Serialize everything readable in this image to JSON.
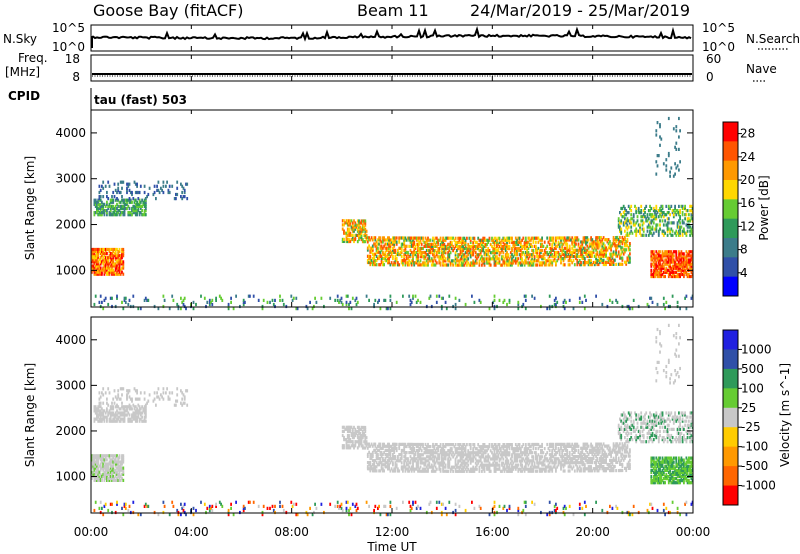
{
  "header": {
    "station": "Goose Bay (fitACF)",
    "beam": "Beam 11",
    "dates": "24/Mar/2019 - 25/Mar/2019"
  },
  "top_panels": {
    "nsky": {
      "label": "N.Sky",
      "ticks_left": [
        "10^5",
        "10^0"
      ],
      "ticks_right": [
        "10^5",
        "10^0"
      ],
      "right_label": "N.Search"
    },
    "freq": {
      "label_line1": "Freq.",
      "label_line2": "[MHz]",
      "ticks_left": [
        "18",
        "8"
      ],
      "ticks_right": [
        "60",
        "0"
      ],
      "right_label": "Nave"
    },
    "cpid": {
      "label": "CPID",
      "value": "tau (fast) 503"
    }
  },
  "colors": {
    "power_scale": [
      "#0000ff",
      "#3050a8",
      "#3c7c8a",
      "#2f9a5a",
      "#66cc33",
      "#ffd700",
      "#ff9900",
      "#ff5500",
      "#ff0000"
    ],
    "velocity_scale": [
      "#ff0000",
      "#ff6600",
      "#ff9900",
      "#ffcc00",
      "#c8c8c8",
      "#66cc33",
      "#2f9a5a",
      "#3050a8",
      "#2020e0"
    ]
  },
  "chart_data": [
    {
      "type": "heatmap",
      "name": "power",
      "ylabel": "Slant Range [km]",
      "y_ticks": [
        1000,
        2000,
        3000,
        4000
      ],
      "ylim": [
        200,
        4500
      ],
      "colorbar_label": "Power [dB]",
      "colorbar_ticks": [
        "4",
        "8",
        "12",
        "16",
        "20",
        "24",
        "28"
      ],
      "colorbar_range": [
        0,
        30
      ]
    },
    {
      "type": "heatmap",
      "name": "velocity",
      "ylabel": "Slant Range [km]",
      "y_ticks": [
        1000,
        2000,
        3000,
        4000
      ],
      "ylim": [
        200,
        4500
      ],
      "colorbar_label": "Velocity [m s^-1]",
      "colorbar_ticks": [
        "1000",
        "500",
        "100",
        "25",
        "-25",
        "-100",
        "-500",
        "-1000"
      ]
    }
  ],
  "x_axis": {
    "ticks": [
      "00:00",
      "04:00",
      "08:00",
      "12:00",
      "16:00",
      "20:00",
      "00:00"
    ],
    "xlabel": "Time UT",
    "range_hours": [
      0,
      24
    ]
  }
}
